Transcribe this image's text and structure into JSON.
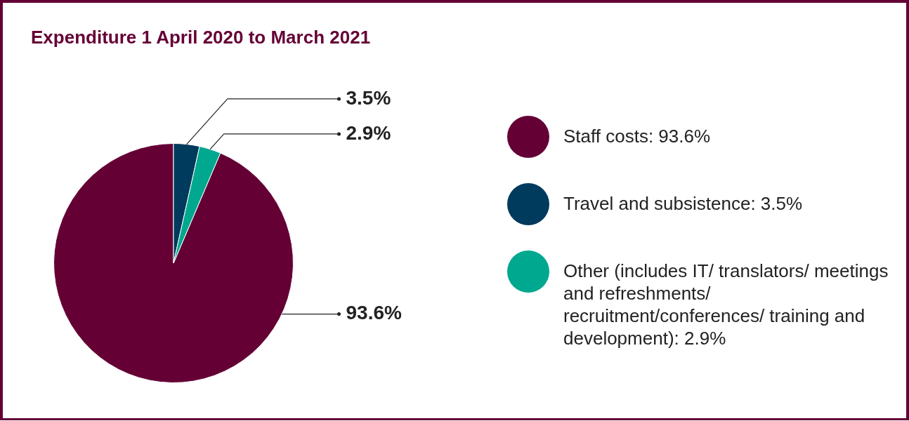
{
  "chart_data": {
    "type": "pie",
    "title": "Expenditure 1 April 2020 to March 2021",
    "categories": [
      "Staff costs: 93.6%",
      "Travel and subsistence: 3.5%",
      "Other (includes IT/ translators/ meetings and refreshments/ recruitment/conferences/ training and development): 2.9%"
    ],
    "values": [
      93.6,
      3.5,
      2.9
    ],
    "colors": [
      "#650035",
      "#003a5d",
      "#00a88f"
    ],
    "value_labels": [
      "93.6%",
      "3.5%",
      "2.9%"
    ],
    "legend": "right"
  }
}
